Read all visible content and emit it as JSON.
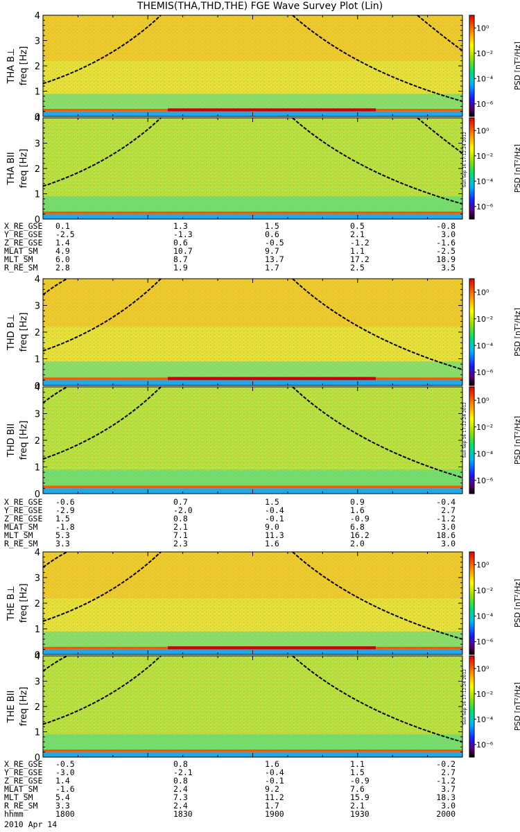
{
  "title": "THEMIS(THA,THD,THE) FGE Wave Survey Plot (Lin)",
  "stamp": "Sun Sep 16 17:12:24 2012",
  "date_label": "2010 Apr 14",
  "colorbar": {
    "label": "PSD [nT²/Hz]",
    "ticks": [
      "10⁰",
      "10⁻²",
      "10⁻⁴",
      "10⁻⁶"
    ]
  },
  "ephemeris_rows": [
    "X_RE_GSE",
    "Y_RE_GSE",
    "Z_RE_GSE",
    "MLAT_SM",
    "MLT_SM",
    "R_RE_SM"
  ],
  "time_row": {
    "label": "hhmm",
    "values": [
      "1800",
      "1830",
      "1900",
      "1930",
      "2000"
    ]
  },
  "chart_data": [
    {
      "type": "heatmap",
      "panel": "THA B⊥",
      "probe_label": "THA B⊥",
      "ylabel": "freq [Hz]",
      "yticks": [
        "0",
        "1",
        "2",
        "3",
        "4"
      ],
      "ylim": [
        0,
        4
      ],
      "xlim": [
        "1800",
        "2000"
      ],
      "colorscale": "log",
      "zlim": [
        1e-06,
        10
      ]
    },
    {
      "type": "heatmap",
      "panel": "THA BII",
      "probe_label": "THA BII",
      "ylabel": "freq [Hz]",
      "yticks": [
        "0",
        "1",
        "2",
        "3",
        "4"
      ],
      "ylim": [
        0,
        4
      ],
      "xlim": [
        "1800",
        "2000"
      ],
      "colorscale": "log",
      "zlim": [
        1e-06,
        10
      ]
    },
    {
      "type": "heatmap",
      "panel": "THD B⊥",
      "probe_label": "THD B⊥",
      "ylabel": "freq [Hz]",
      "yticks": [
        "0",
        "1",
        "2",
        "3",
        "4"
      ],
      "ylim": [
        0,
        4
      ],
      "xlim": [
        "1800",
        "2000"
      ],
      "colorscale": "log",
      "zlim": [
        1e-06,
        10
      ]
    },
    {
      "type": "heatmap",
      "panel": "THD BII",
      "probe_label": "THD BII",
      "ylabel": "freq [Hz]",
      "yticks": [
        "0",
        "1",
        "2",
        "3",
        "4"
      ],
      "ylim": [
        0,
        4
      ],
      "xlim": [
        "1800",
        "2000"
      ],
      "colorscale": "log",
      "zlim": [
        1e-06,
        10
      ]
    },
    {
      "type": "heatmap",
      "panel": "THE B⊥",
      "probe_label": "THE B⊥",
      "ylabel": "freq [Hz]",
      "yticks": [
        "0",
        "1",
        "2",
        "3",
        "4"
      ],
      "ylim": [
        0,
        4
      ],
      "xlim": [
        "1800",
        "2000"
      ],
      "colorscale": "log",
      "zlim": [
        1e-06,
        10
      ]
    },
    {
      "type": "heatmap",
      "panel": "THE BII",
      "probe_label": "THE BII",
      "ylabel": "freq [Hz]",
      "yticks": [
        "0",
        "1",
        "2",
        "3",
        "4"
      ],
      "ylim": [
        0,
        4
      ],
      "xlim": [
        "1800",
        "2000"
      ],
      "colorscale": "log",
      "zlim": [
        1e-06,
        10
      ]
    }
  ],
  "ephemeris": [
    {
      "probe": "THA",
      "values": [
        [
          "0.1",
          "1.3",
          "1.5",
          "0.5",
          "-0.8"
        ],
        [
          "-2.5",
          "-1.3",
          "0.6",
          "2.1",
          "3.0"
        ],
        [
          "1.4",
          "0.6",
          "-0.5",
          "-1.2",
          "-1.6"
        ],
        [
          "4.9",
          "10.7",
          "9.7",
          "1.1",
          "-2.5"
        ],
        [
          "6.0",
          "8.7",
          "13.7",
          "17.2",
          "18.9"
        ],
        [
          "2.8",
          "1.9",
          "1.7",
          "2.5",
          "3.5"
        ]
      ]
    },
    {
      "probe": "THD",
      "values": [
        [
          "-0.6",
          "0.7",
          "1.5",
          "0.9",
          "-0.4"
        ],
        [
          "-2.9",
          "-2.0",
          "-0.4",
          "1.6",
          "2.7"
        ],
        [
          "1.5",
          "0.8",
          "-0.1",
          "-0.9",
          "-1.2"
        ],
        [
          "-1.8",
          "2.1",
          "9.0",
          "6.8",
          "3.0"
        ],
        [
          "5.3",
          "7.1",
          "11.3",
          "16.2",
          "18.6"
        ],
        [
          "3.3",
          "2.3",
          "1.6",
          "2.0",
          "3.0"
        ]
      ]
    },
    {
      "probe": "THE",
      "values": [
        [
          "-0.5",
          "0.8",
          "1.6",
          "1.1",
          "-0.2"
        ],
        [
          "-3.0",
          "-2.1",
          "-0.4",
          "1.5",
          "2.7"
        ],
        [
          "1.4",
          "0.8",
          "-0.1",
          "-0.9",
          "-1.2"
        ],
        [
          "-1.6",
          "2.4",
          "9.2",
          "7.6",
          "3.7"
        ],
        [
          "5.4",
          "7.3",
          "11.2",
          "15.9",
          "18.3"
        ],
        [
          "3.3",
          "2.4",
          "1.7",
          "2.1",
          "3.0"
        ]
      ]
    }
  ]
}
